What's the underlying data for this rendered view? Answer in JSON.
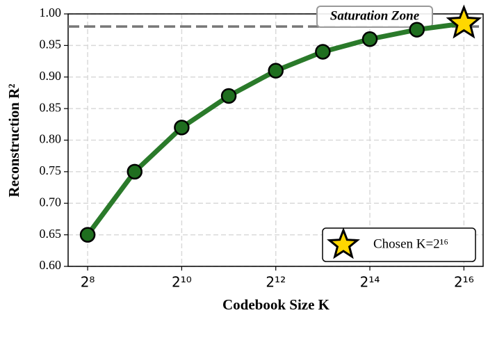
{
  "chart_data": {
    "type": "line",
    "x_label": "Codebook Size K",
    "y_label": "Reconstruction R²",
    "x": [
      256,
      512,
      1024,
      2048,
      4096,
      8192,
      16384,
      32768,
      65536
    ],
    "values": [
      0.65,
      0.75,
      0.82,
      0.87,
      0.91,
      0.94,
      0.96,
      0.975,
      0.985
    ],
    "color": "#2a7a2a",
    "marker_color": "#1f6e1f",
    "x_scale": "log2",
    "xlim": [
      192,
      87000
    ],
    "xticks": [
      {
        "value": 256,
        "label": "2⁸"
      },
      {
        "value": 1024,
        "label": "2¹⁰"
      },
      {
        "value": 4096,
        "label": "2¹²"
      },
      {
        "value": 16384,
        "label": "2¹⁴"
      },
      {
        "value": 65536,
        "label": "2¹⁶"
      }
    ],
    "ylim": [
      0.6,
      1.0
    ],
    "yticks": [
      {
        "value": 0.6,
        "label": "0.60"
      },
      0.65,
      {
        "value": 0.7,
        "label": "0.70"
      },
      0.75,
      {
        "value": 0.8,
        "label": "0.80"
      },
      0.85,
      {
        "value": 0.9,
        "label": "0.90"
      },
      0.95,
      {
        "value": 1.0,
        "label": "1.00"
      }
    ],
    "grid": true,
    "hline": {
      "value": 0.98,
      "color": "#777777"
    },
    "annotation": "Saturation Zone",
    "highlight": {
      "label": "Chosen K=2¹⁶",
      "x": 65536,
      "value": 0.985,
      "color": "#FFD700"
    },
    "legend": "lower right"
  }
}
